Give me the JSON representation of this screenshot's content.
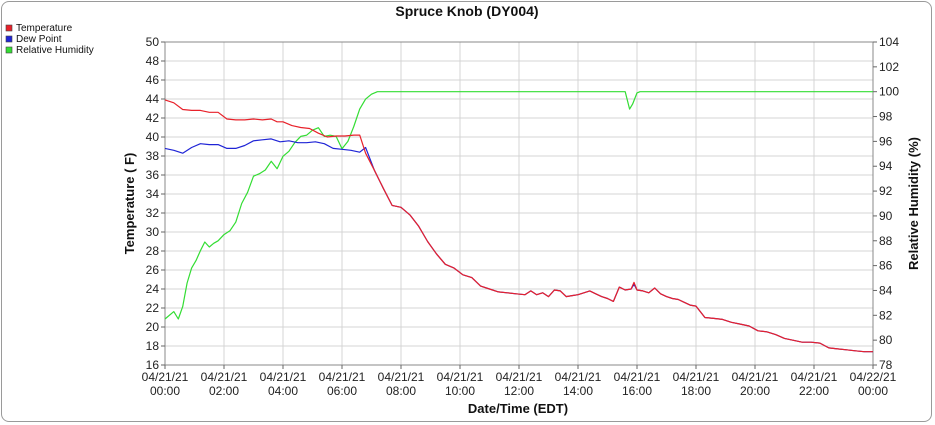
{
  "chart_data": {
    "type": "line",
    "title": "Spruce Knob (DY004)",
    "xlabel": "Date/Time (EDT)",
    "ylabel": "Temperature ( F)",
    "y2label": "Relative Humidity (%)",
    "ylim": [
      16,
      50
    ],
    "y2lim": [
      78,
      104
    ],
    "x_ticks": [
      {
        "date": "04/21/21",
        "time": "00:00"
      },
      {
        "date": "04/21/21",
        "time": "02:00"
      },
      {
        "date": "04/21/21",
        "time": "04:00"
      },
      {
        "date": "04/21/21",
        "time": "06:00"
      },
      {
        "date": "04/21/21",
        "time": "08:00"
      },
      {
        "date": "04/21/21",
        "time": "10:00"
      },
      {
        "date": "04/21/21",
        "time": "12:00"
      },
      {
        "date": "04/21/21",
        "time": "14:00"
      },
      {
        "date": "04/21/21",
        "time": "16:00"
      },
      {
        "date": "04/21/21",
        "time": "18:00"
      },
      {
        "date": "04/21/21",
        "time": "20:00"
      },
      {
        "date": "04/21/21",
        "time": "22:00"
      },
      {
        "date": "04/22/21",
        "time": "00:00"
      }
    ],
    "y_ticks": [
      16,
      18,
      20,
      22,
      24,
      26,
      28,
      30,
      32,
      34,
      36,
      38,
      40,
      42,
      44,
      46,
      48,
      50
    ],
    "y2_ticks": [
      78,
      80,
      82,
      84,
      86,
      88,
      90,
      92,
      94,
      96,
      98,
      100,
      102,
      104
    ],
    "grid": true,
    "legend": "top-left",
    "series": [
      {
        "name": "Temperature",
        "axis": "left",
        "color": "#e8212a",
        "x_hours": [
          0,
          0.3,
          0.6,
          0.9,
          1.2,
          1.5,
          1.8,
          2.1,
          2.4,
          2.7,
          3.0,
          3.3,
          3.6,
          3.8,
          4.0,
          4.3,
          4.6,
          4.9,
          5.2,
          5.5,
          5.8,
          6.1,
          6.4,
          6.6,
          6.8,
          7.1,
          7.4,
          7.7,
          8.0,
          8.3,
          8.6,
          8.9,
          9.2,
          9.5,
          9.8,
          10.1,
          10.4,
          10.7,
          11.0,
          11.3,
          11.6,
          11.9,
          12.2,
          12.4,
          12.6,
          12.8,
          13.0,
          13.2,
          13.4,
          13.6,
          13.8,
          14.0,
          14.2,
          14.4,
          14.6,
          14.8,
          15.0,
          15.2,
          15.4,
          15.6,
          15.8,
          15.9,
          16.0,
          16.2,
          16.4,
          16.6,
          16.8,
          17.0,
          17.2,
          17.4,
          17.6,
          17.8,
          18.0,
          18.3,
          18.6,
          18.9,
          19.2,
          19.5,
          19.8,
          20.1,
          20.4,
          20.7,
          21.0,
          21.3,
          21.6,
          21.9,
          22.2,
          22.5,
          22.8,
          23.1,
          23.4,
          23.7,
          24.0
        ],
        "values": [
          43.9,
          43.6,
          42.9,
          42.8,
          42.8,
          42.6,
          42.6,
          41.9,
          41.8,
          41.8,
          41.9,
          41.8,
          41.9,
          41.6,
          41.6,
          41.2,
          41.0,
          40.9,
          40.4,
          40.0,
          40.1,
          40.1,
          40.2,
          40.2,
          38.3,
          36.5,
          34.6,
          32.8,
          32.6,
          31.8,
          30.6,
          29.0,
          27.7,
          26.6,
          26.2,
          25.5,
          25.2,
          24.3,
          24.0,
          23.7,
          23.6,
          23.5,
          23.4,
          23.8,
          23.4,
          23.6,
          23.2,
          23.9,
          23.8,
          23.2,
          23.3,
          23.4,
          23.6,
          23.8,
          23.5,
          23.2,
          23.0,
          22.7,
          24.2,
          23.9,
          24.0,
          24.7,
          23.9,
          23.8,
          23.6,
          24.1,
          23.5,
          23.2,
          23.0,
          22.9,
          22.6,
          22.3,
          22.2,
          21.0,
          20.9,
          20.8,
          20.5,
          20.3,
          20.1,
          19.6,
          19.5,
          19.2,
          18.8,
          18.6,
          18.4,
          18.4,
          18.3,
          17.8,
          17.7,
          17.6,
          17.5,
          17.4,
          17.4
        ]
      },
      {
        "name": "Dew Point",
        "axis": "left",
        "color": "#1f24d6",
        "x_hours": [
          0,
          0.3,
          0.6,
          0.9,
          1.2,
          1.5,
          1.8,
          2.1,
          2.4,
          2.7,
          3.0,
          3.3,
          3.6,
          3.9,
          4.2,
          4.5,
          4.8,
          5.1,
          5.4,
          5.7,
          6.0,
          6.3,
          6.6,
          6.8,
          7.1,
          7.4,
          7.7,
          8.0,
          8.3,
          8.6,
          8.9,
          9.2,
          9.5,
          9.8,
          10.1,
          10.4,
          10.7,
          11.0,
          11.3,
          11.6,
          11.9,
          12.2,
          12.4,
          12.6,
          12.8,
          13.0,
          13.2,
          13.4,
          13.6,
          13.8,
          14.0,
          14.2,
          14.4,
          14.6,
          14.8,
          15.0,
          15.2,
          15.4,
          15.6,
          15.8,
          15.9,
          16.0,
          16.2,
          16.4,
          16.6,
          16.8,
          17.0,
          17.2,
          17.4,
          17.6,
          17.8,
          18.0,
          18.3,
          18.6,
          18.9,
          19.2,
          19.5,
          19.8,
          20.1,
          20.4,
          20.7,
          21.0,
          21.3,
          21.6,
          21.9,
          22.2,
          22.5,
          22.8,
          23.1,
          23.4,
          23.7,
          24.0
        ],
        "values": [
          38.8,
          38.6,
          38.3,
          38.9,
          39.3,
          39.2,
          39.2,
          38.8,
          38.8,
          39.1,
          39.6,
          39.7,
          39.8,
          39.5,
          39.6,
          39.4,
          39.4,
          39.5,
          39.3,
          38.8,
          38.7,
          38.6,
          38.4,
          38.9,
          36.5,
          34.6,
          32.8,
          32.6,
          31.8,
          30.6,
          29.0,
          27.7,
          26.6,
          26.2,
          25.5,
          25.2,
          24.3,
          24.0,
          23.7,
          23.6,
          23.5,
          23.4,
          23.8,
          23.4,
          23.6,
          23.2,
          23.9,
          23.8,
          23.2,
          23.3,
          23.4,
          23.6,
          23.8,
          23.5,
          23.2,
          23.0,
          22.7,
          24.2,
          23.9,
          24.0,
          24.5,
          23.9,
          23.8,
          23.6,
          24.1,
          23.5,
          23.2,
          23.0,
          22.9,
          22.6,
          22.3,
          22.2,
          21.0,
          20.9,
          20.8,
          20.5,
          20.3,
          20.1,
          19.6,
          19.5,
          19.2,
          18.8,
          18.6,
          18.4,
          18.4,
          18.3,
          17.8,
          17.7,
          17.6,
          17.5,
          17.4,
          17.4
        ]
      },
      {
        "name": "Relative Humidity",
        "axis": "right",
        "color": "#33dd33",
        "x_hours": [
          0,
          0.3,
          0.45,
          0.6,
          0.75,
          0.9,
          1.05,
          1.2,
          1.35,
          1.5,
          1.65,
          1.8,
          2.0,
          2.2,
          2.4,
          2.6,
          2.8,
          3.0,
          3.2,
          3.4,
          3.6,
          3.8,
          4.0,
          4.2,
          4.4,
          4.6,
          4.8,
          5.0,
          5.2,
          5.4,
          5.6,
          5.8,
          6.0,
          6.2,
          6.4,
          6.6,
          6.8,
          7.0,
          7.2,
          7.35,
          7.5,
          7.7,
          8.0,
          10.0,
          12.0,
          14.0,
          15.6,
          15.75,
          15.85,
          16.0,
          16.1,
          16.3,
          18.0,
          20.0,
          22.0,
          24.0
        ],
        "values": [
          81.7,
          82.3,
          81.7,
          82.7,
          84.6,
          85.8,
          86.4,
          87.2,
          87.9,
          87.5,
          87.8,
          88.0,
          88.5,
          88.8,
          89.5,
          91.0,
          91.9,
          93.2,
          93.4,
          93.7,
          94.4,
          93.8,
          94.8,
          95.2,
          95.9,
          96.4,
          96.5,
          96.9,
          97.1,
          96.4,
          96.5,
          96.4,
          95.4,
          96.0,
          97.2,
          98.6,
          99.4,
          99.8,
          100.0,
          100.0,
          100.0,
          100.0,
          100.0,
          100.0,
          100.0,
          100.0,
          100.0,
          98.6,
          99.0,
          99.9,
          100.0,
          100.0,
          100.0,
          100.0,
          100.0,
          100.0
        ]
      }
    ]
  }
}
